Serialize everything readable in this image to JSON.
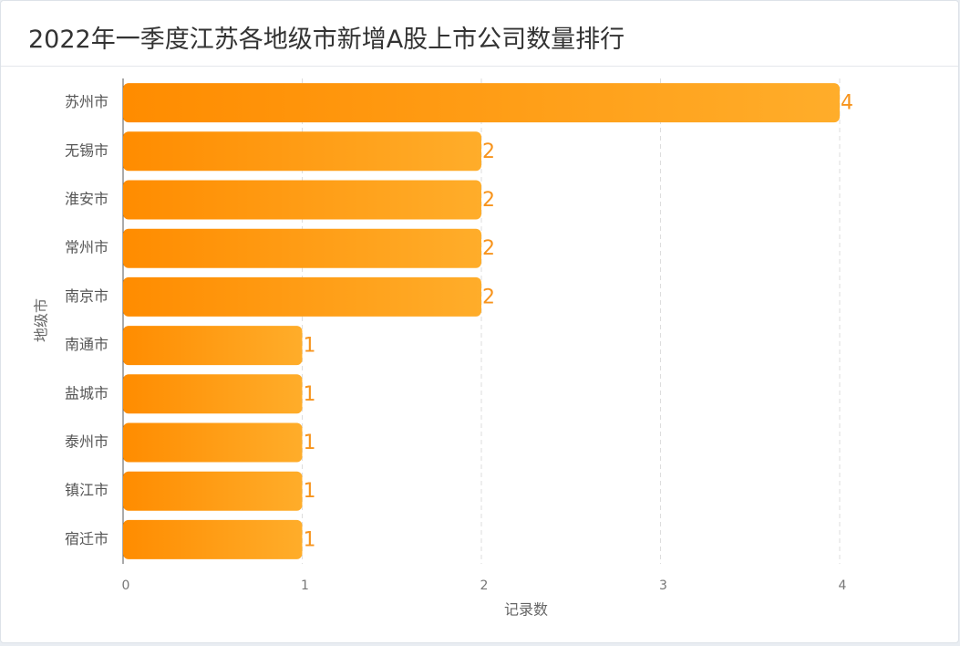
{
  "chart_data": {
    "type": "bar",
    "orientation": "horizontal",
    "title": "2022年一季度江苏各地级市新增A股上市公司数量排行",
    "x_label": "记录数",
    "y_label": "地级市",
    "categories": [
      "苏州市",
      "无锡市",
      "淮安市",
      "常州市",
      "南京市",
      "南通市",
      "盐城市",
      "泰州市",
      "镇江市",
      "宿迁市"
    ],
    "values": [
      4,
      2,
      2,
      2,
      2,
      1,
      1,
      1,
      1,
      1
    ],
    "gradient": [
      "#ff8c00",
      "#ffad2a"
    ],
    "label_color": "#f7941d",
    "xlim": [
      0,
      4
    ],
    "xticks": [
      0,
      1,
      2,
      3,
      4
    ],
    "grid": true
  }
}
